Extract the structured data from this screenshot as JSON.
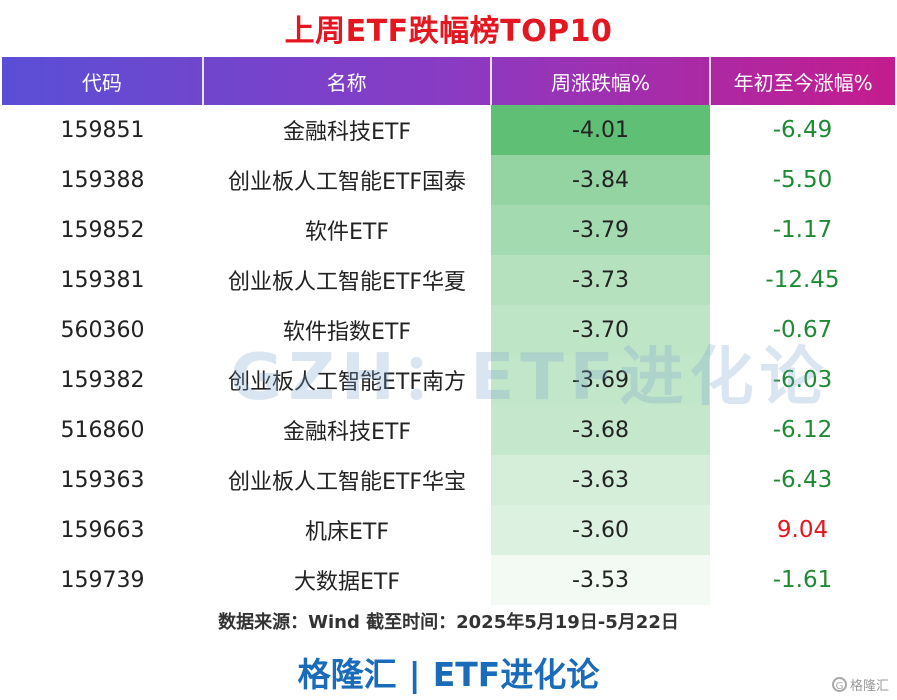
{
  "title": "上周ETF跌幅榜TOP10",
  "headers": [
    "代码",
    "名称",
    "周涨跌幅%",
    "年初至今涨幅%"
  ],
  "rows": [
    {
      "code": "159851",
      "name": "金融科技ETF",
      "week": "-4.01",
      "ytd": "-6.49"
    },
    {
      "code": "159388",
      "name": "创业板人工智能ETF国泰",
      "week": "-3.84",
      "ytd": "-5.50"
    },
    {
      "code": "159852",
      "name": "软件ETF",
      "week": "-3.79",
      "ytd": "-1.17"
    },
    {
      "code": "159381",
      "name": "创业板人工智能ETF华夏",
      "week": "-3.73",
      "ytd": "-12.45"
    },
    {
      "code": "560360",
      "name": "软件指数ETF",
      "week": "-3.70",
      "ytd": "-0.67"
    },
    {
      "code": "159382",
      "name": "创业板人工智能ETF南方",
      "week": "-3.69",
      "ytd": "-6.03"
    },
    {
      "code": "516860",
      "name": "金融科技ETF",
      "week": "-3.68",
      "ytd": "-6.12"
    },
    {
      "code": "159363",
      "name": "创业板人工智能ETF华宝",
      "week": "-3.63",
      "ytd": "-6.43"
    },
    {
      "code": "159663",
      "name": "机床ETF",
      "week": "-3.60",
      "ytd": "9.04"
    },
    {
      "code": "159739",
      "name": "大数据ETF",
      "week": "-3.53",
      "ytd": "-1.61"
    }
  ],
  "source": "数据来源：Wind 截至时间：2025年5月19日-5月22日",
  "footer": {
    "left": "格隆汇",
    "divider": "|",
    "right": "ETF进化论"
  },
  "watermark": "GZH：ETF进化论",
  "logo_text": "格隆汇",
  "colors": {
    "title": "#e4161f",
    "heat_strong": "#5fbf75",
    "heat_weak": "#f3faf4",
    "positive": "#e4161f",
    "negative": "#1e8a34",
    "footer": "#1a6cba"
  }
}
